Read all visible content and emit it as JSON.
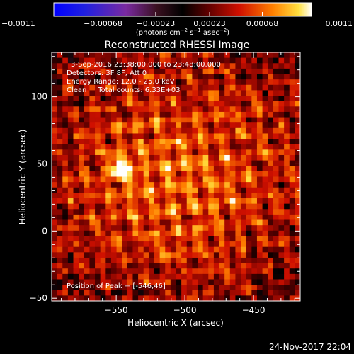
{
  "chart_data": {
    "type": "heatmap",
    "title": "Reconstructed RHESSI Image",
    "xlabel": "Heliocentric X (arcsec)",
    "ylabel": "Heliocentric Y (arcsec)",
    "xlim": [
      -597,
      -416
    ],
    "ylim": [
      -52,
      133
    ],
    "x_ticks": [
      -550,
      -500,
      -450
    ],
    "y_ticks": [
      -50,
      0,
      50,
      100
    ],
    "x_tick_labels": [
      "−550",
      "−500",
      "−450"
    ],
    "y_tick_labels": [
      "−50",
      "0",
      "50",
      "100"
    ],
    "colorbar": {
      "min": -0.0011,
      "max": 0.0011,
      "ticks": [
        -0.0011,
        -0.00068,
        -0.00023,
        0.00023,
        0.00068,
        0.0011
      ],
      "tick_labels": [
        "−0.0011",
        "−0.00068",
        "−0.00023",
        "0.00023",
        "0.00068",
        "0.0011"
      ],
      "units_prefix": "(photons cm",
      "units_exp1": "−2",
      "units_mid": " s",
      "units_exp2": "−1",
      "units_mid2": " asec",
      "units_exp3": "−2",
      "units_suffix": ")"
    },
    "annotations": [
      "3-Sep-2016 23:38:00.000 to 23:48:00.000",
      "Detectors: 3F 8F, Att 0",
      "Energy Range: 12.0 - 25.0 keV",
      "Clean     Total counts: 6.33E+03"
    ],
    "peak_label": "Position of Peak = [-546,46]",
    "peak_position": [
      -546,
      46
    ],
    "peak_value": 0.0011,
    "notes": "Pixel values estimated: blotchy fringe pattern, brightest near peak, dimmer (purple/blue) near edges."
  },
  "footer": {
    "timestamp": "24-Nov-2017 22:04"
  }
}
